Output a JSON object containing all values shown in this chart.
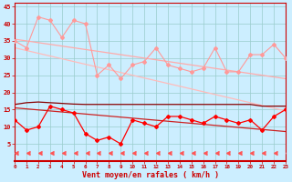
{
  "x": [
    0,
    1,
    2,
    3,
    4,
    5,
    6,
    7,
    8,
    9,
    10,
    11,
    12,
    13,
    14,
    15,
    16,
    17,
    18,
    19,
    20,
    21,
    22,
    23
  ],
  "series": [
    {
      "name": "rafales_zigzag",
      "y": [
        35,
        33,
        42,
        41,
        36,
        41,
        40,
        25,
        28,
        24,
        28,
        29,
        33,
        28,
        27,
        26,
        27,
        33,
        26,
        26,
        31,
        31,
        34,
        30
      ],
      "color": "#ff9999",
      "linewidth": 0.8,
      "marker": "D",
      "markersize": 2.0,
      "linestyle": "-"
    },
    {
      "name": "trend_line1",
      "y": [
        35.5,
        35.0,
        34.5,
        34.0,
        33.5,
        33.0,
        32.5,
        32.0,
        31.5,
        31.0,
        30.5,
        30.0,
        29.5,
        29.0,
        28.5,
        28.0,
        27.5,
        27.0,
        26.5,
        26.0,
        25.5,
        25.0,
        24.5,
        24.0
      ],
      "color": "#ffaaaa",
      "linewidth": 0.9,
      "marker": "none",
      "markersize": 0,
      "linestyle": "-"
    },
    {
      "name": "trend_line2",
      "y": [
        33.0,
        32.2,
        31.4,
        30.6,
        29.8,
        29.0,
        28.2,
        27.4,
        26.6,
        25.8,
        25.0,
        24.2,
        23.4,
        22.6,
        21.8,
        21.0,
        20.2,
        19.4,
        18.6,
        17.8,
        17.0,
        16.2,
        15.4,
        14.6
      ],
      "color": "#ffbbbb",
      "linewidth": 0.9,
      "marker": "none",
      "markersize": 0,
      "linestyle": "-"
    },
    {
      "name": "flat_dark_upper",
      "y": [
        16.5,
        17.0,
        17.2,
        17.0,
        16.8,
        16.6,
        16.5,
        16.5,
        16.5,
        16.5,
        16.5,
        16.5,
        16.5,
        16.5,
        16.5,
        16.5,
        16.5,
        16.5,
        16.5,
        16.5,
        16.5,
        16.0,
        16.0,
        16.0
      ],
      "color": "#880000",
      "linewidth": 0.9,
      "marker": "none",
      "markersize": 0,
      "linestyle": "-"
    },
    {
      "name": "trend_lower",
      "y": [
        15.5,
        15.2,
        14.9,
        14.6,
        14.3,
        14.0,
        13.7,
        13.4,
        13.1,
        12.8,
        12.5,
        12.2,
        11.9,
        11.6,
        11.3,
        11.0,
        10.7,
        10.4,
        10.1,
        9.8,
        9.5,
        9.2,
        8.9,
        8.6
      ],
      "color": "#cc2222",
      "linewidth": 0.9,
      "marker": "none",
      "markersize": 0,
      "linestyle": "-"
    },
    {
      "name": "moyen_zigzag",
      "y": [
        12,
        9,
        10,
        16,
        15,
        14,
        8,
        6,
        7,
        5,
        12,
        11,
        10,
        13,
        13,
        12,
        11,
        13,
        12,
        11,
        12,
        9,
        13,
        15
      ],
      "color": "#ff0000",
      "linewidth": 0.9,
      "marker": "D",
      "markersize": 2.0,
      "linestyle": "-"
    },
    {
      "name": "wind_row1",
      "y": [
        2.5,
        2.5,
        2.5,
        2.5,
        2.5,
        2.5,
        2.5,
        2.5,
        2.5,
        2.5,
        2.5,
        2.5,
        2.5,
        2.5,
        2.5,
        2.5,
        2.5,
        2.5,
        2.5,
        2.5,
        2.5,
        2.5,
        2.5,
        2.5
      ],
      "color": "#ff5555",
      "linewidth": 0,
      "marker": 4,
      "markersize": 3.5,
      "linestyle": "none"
    }
  ],
  "xlim": [
    0,
    23
  ],
  "ylim": [
    0,
    46
  ],
  "yticks": [
    5,
    10,
    15,
    20,
    25,
    30,
    35,
    40,
    45
  ],
  "xticks": [
    0,
    1,
    2,
    3,
    4,
    5,
    6,
    7,
    8,
    9,
    10,
    11,
    12,
    13,
    14,
    15,
    16,
    17,
    18,
    19,
    20,
    21,
    22,
    23
  ],
  "xlabel": "Vent moyen/en rafales ( km/h )",
  "bg_color": "#cceeff",
  "grid_color": "#99cccc",
  "axis_color": "#cc0000",
  "tick_color": "#cc0000",
  "label_color": "#cc0000"
}
